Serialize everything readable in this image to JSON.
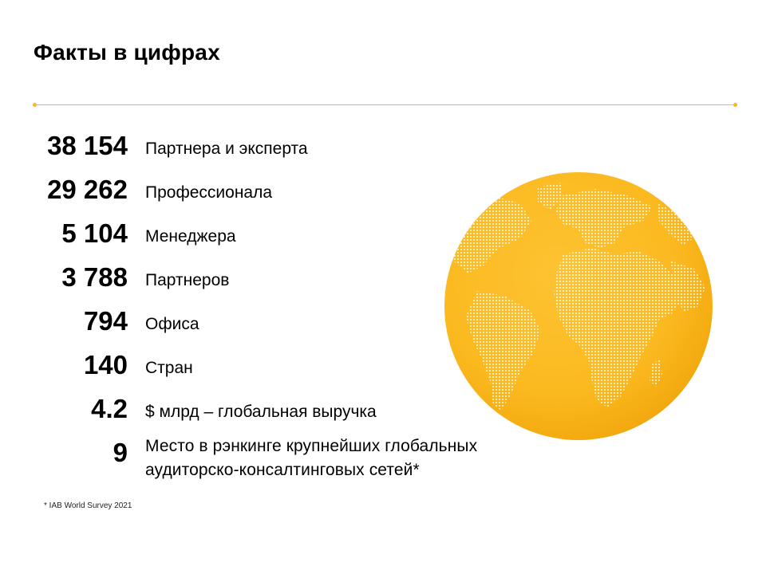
{
  "slide": {
    "title": "Факты в цифрах",
    "accent_color": "#FBB91F",
    "footnote": "* IAB World Survey 2021",
    "globe_icon": "globe-icon"
  },
  "facts": [
    {
      "value": "38 154",
      "label": "Партнера и эксперта"
    },
    {
      "value": "29 262",
      "label": "Профессионала"
    },
    {
      "value": "5 104",
      "label": "Менеджера"
    },
    {
      "value": "3 788",
      "label": "Партнеров"
    },
    {
      "value": "794",
      "label": "Офиса"
    },
    {
      "value": "140",
      "label": "Стран"
    },
    {
      "value": "4.2",
      "label": "$ млрд – глобальная выручка"
    },
    {
      "value": "9",
      "label_line1": "Место в рэнкинге крупнейших глобальных",
      "label_line2": "аудиторско-консалтинговых сетей*"
    }
  ]
}
